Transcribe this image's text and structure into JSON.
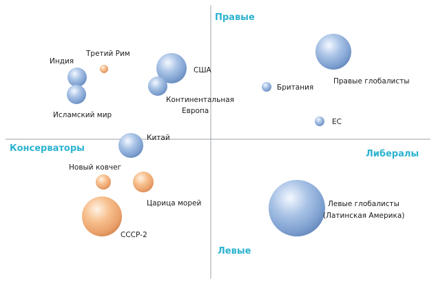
{
  "axes": {
    "top": "Правые",
    "bottom": "Левые",
    "left": "Консерваторы",
    "right": "Либералы",
    "line_color": "#9aa0a6",
    "label_color": "#2bb3cf"
  },
  "bubble_colors": {
    "blue": "#8fb0dc",
    "orange": "#f2b27e"
  },
  "labels": {
    "india": "Индия",
    "third_rome": "Третий Рим",
    "usa": "США",
    "islamic": "Исламский мир",
    "cont_europe_1": "Континентальная",
    "cont_europe_2": "Европа",
    "britain": "Британия",
    "right_globalists": "Правые глобалисты",
    "eu": "ЕС",
    "china": "Китай",
    "new_ark": "Новый ковчег",
    "queen_seas": "Царица морей",
    "left_glob_1": "Левые глобалисты",
    "left_glob_2": "(Латинская Америка)",
    "ussr2": "СССР-2"
  }
}
